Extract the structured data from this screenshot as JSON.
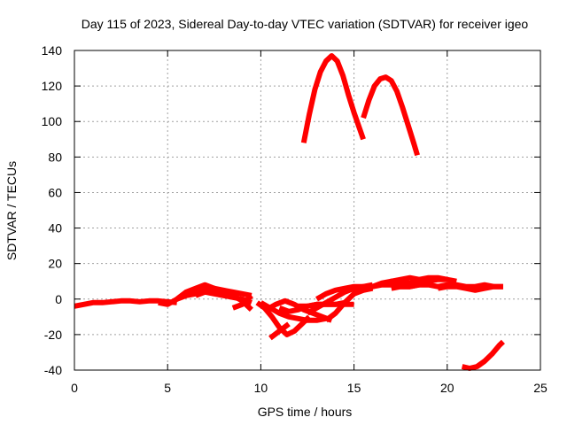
{
  "chart_data": {
    "type": "line",
    "title": "Day 115 of 2023, Sidereal Day-to-day VTEC variation (SDTVAR) for receiver igeo",
    "xlabel": "GPS time / hours",
    "ylabel": "SDTVAR / TECUs",
    "xlim": [
      0,
      25
    ],
    "ylim": [
      -40,
      140
    ],
    "xticks": [
      "0",
      "5",
      "10",
      "15",
      "20",
      "25"
    ],
    "yticks": [
      "-40",
      "-20",
      "0",
      "20",
      "40",
      "60",
      "80",
      "100",
      "120",
      "140"
    ],
    "grid": true,
    "color": "#ff0000",
    "series": [
      {
        "name": "trace-1",
        "x": [
          0,
          0.5,
          1,
          1.5,
          2,
          2.5,
          3,
          3.5,
          4,
          4.5,
          5,
          5.5
        ],
        "y": [
          -4,
          -3,
          -2,
          -2,
          -1.5,
          -1,
          -1,
          -1.5,
          -1,
          -1,
          -1.5,
          -2
        ]
      },
      {
        "name": "trace-2",
        "x": [
          4.5,
          5,
          5.5,
          6,
          6.5,
          7,
          7.5,
          8
        ],
        "y": [
          -2,
          -3,
          0,
          4,
          6,
          8,
          6,
          3
        ]
      },
      {
        "name": "trace-3",
        "x": [
          5.5,
          6,
          6.5,
          7,
          7.5,
          8,
          8.5,
          9,
          9.5
        ],
        "y": [
          0,
          2,
          3,
          5,
          6,
          5,
          4,
          3,
          2
        ]
      },
      {
        "name": "trace-4",
        "x": [
          7,
          7.5,
          8,
          8.5,
          9,
          9.5
        ],
        "y": [
          4,
          3,
          2,
          1,
          0,
          -2
        ]
      },
      {
        "name": "trace-5",
        "x": [
          6.5,
          7,
          7.5,
          8,
          8.5,
          9,
          9.5
        ],
        "y": [
          2,
          4,
          5,
          4,
          2,
          -1,
          -6
        ]
      },
      {
        "name": "trace-6",
        "x": [
          8.5,
          9,
          9.5
        ],
        "y": [
          -5,
          -3,
          2
        ]
      },
      {
        "name": "trace-7",
        "x": [
          9.8,
          10.2,
          10.6,
          11,
          11.4,
          11.8,
          12.2,
          12.6
        ],
        "y": [
          -2,
          -5,
          -10,
          -16,
          -20,
          -18,
          -14,
          -10
        ]
      },
      {
        "name": "trace-8",
        "x": [
          10.5,
          11,
          11.5
        ],
        "y": [
          -22,
          -18,
          -14
        ]
      },
      {
        "name": "trace-9",
        "x": [
          10,
          10.5,
          11,
          11.5,
          12,
          12.5,
          13,
          13.5
        ],
        "y": [
          -2,
          -5,
          -8,
          -10,
          -11,
          -12,
          -12,
          -11
        ]
      },
      {
        "name": "trace-10",
        "x": [
          10.3,
          10.8,
          11.3,
          11.8,
          12.3,
          12.8,
          13.3,
          13.8
        ],
        "y": [
          -6,
          -3,
          -1,
          -3,
          -6,
          -8,
          -10,
          -12
        ]
      },
      {
        "name": "trace-11",
        "x": [
          11,
          11.5,
          12,
          12.5,
          13,
          13.5,
          14,
          14.5
        ],
        "y": [
          -5,
          -7,
          -6,
          -4,
          -3,
          -3,
          -3,
          -2
        ]
      },
      {
        "name": "trace-12",
        "x": [
          12,
          12.5,
          13,
          13.5,
          14,
          14.5,
          15
        ],
        "y": [
          -4,
          -4,
          -3,
          -3,
          -3,
          -3,
          -3
        ]
      },
      {
        "name": "trace-13",
        "x": [
          12.5,
          13,
          13.5,
          14,
          14.5,
          15,
          15.5,
          16
        ],
        "y": [
          -8,
          -5,
          -2,
          1,
          4,
          6,
          7,
          8
        ]
      },
      {
        "name": "trace-14",
        "x": [
          13.5,
          14,
          14.5,
          15,
          15.5,
          16
        ],
        "y": [
          -12,
          -8,
          -2,
          3,
          5,
          6
        ]
      },
      {
        "name": "trace-15",
        "x": [
          13,
          13.5,
          14,
          14.5,
          15,
          15.5,
          16,
          16.5,
          17,
          17.5,
          18,
          18.5
        ],
        "y": [
          0,
          3,
          5,
          6,
          7,
          7,
          7,
          8,
          8,
          7,
          7,
          8
        ]
      },
      {
        "name": "trace-16",
        "x": [
          15.5,
          16,
          16.5,
          17,
          17.5,
          18,
          18.5,
          19,
          19.5,
          20,
          20.5
        ],
        "y": [
          5,
          7,
          9,
          10,
          9,
          9,
          10,
          10,
          11,
          11,
          10
        ]
      },
      {
        "name": "trace-17",
        "x": [
          16.5,
          17,
          17.5,
          18,
          18.5,
          19,
          19.5,
          20
        ],
        "y": [
          8,
          10,
          11,
          12,
          11,
          12,
          12,
          11
        ]
      },
      {
        "name": "trace-18",
        "x": [
          17,
          17.5,
          18,
          18.5,
          19,
          19.5,
          20,
          20.5,
          21,
          21.5,
          22,
          22.5,
          23
        ],
        "y": [
          6,
          7,
          7,
          8,
          8,
          7,
          8,
          8,
          7,
          7,
          8,
          7,
          7
        ]
      },
      {
        "name": "trace-19",
        "x": [
          19.5,
          20,
          20.5,
          21,
          21.5,
          22,
          22.5,
          23
        ],
        "y": [
          6,
          7,
          7,
          6,
          5,
          6,
          7,
          7
        ]
      },
      {
        "name": "trace-20",
        "x": [
          12.3,
          12.6,
          12.9,
          13.2,
          13.5,
          13.8,
          14.1,
          14.4,
          14.7,
          15,
          15.3,
          15.5
        ],
        "y": [
          88,
          104,
          118,
          128,
          134,
          137,
          134,
          126,
          115,
          105,
          96,
          90
        ]
      },
      {
        "name": "trace-21",
        "x": [
          15.5,
          15.8,
          16.1,
          16.4,
          16.7,
          17,
          17.3,
          17.6,
          17.9,
          18.2,
          18.4
        ],
        "y": [
          102,
          112,
          120,
          124,
          125,
          123,
          117,
          108,
          98,
          88,
          81
        ]
      },
      {
        "name": "trace-22",
        "x": [
          20.8,
          21.2,
          21.6,
          22,
          22.4,
          22.8,
          23
        ],
        "y": [
          -38,
          -39,
          -38,
          -35,
          -31,
          -26,
          -24
        ]
      }
    ]
  }
}
